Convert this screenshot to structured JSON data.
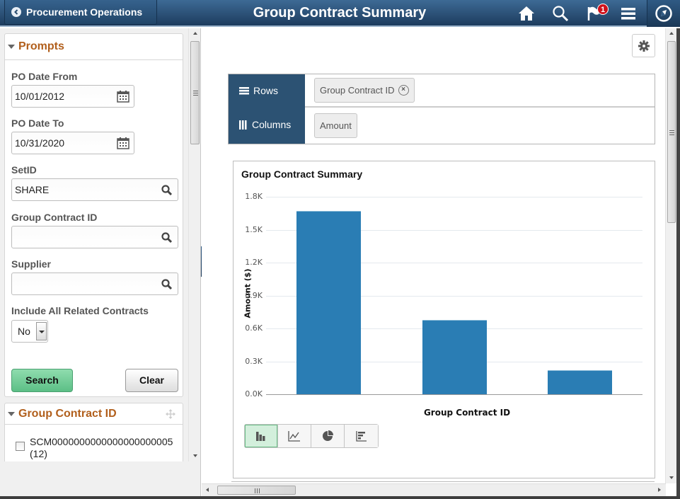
{
  "header": {
    "back_label": "Procurement Operations",
    "title": "Group Contract Summary",
    "notification_count": "1",
    "icons": [
      "home-icon",
      "search-icon",
      "notification-flag-icon",
      "menu-icon",
      "navbar-compass-icon"
    ]
  },
  "prompts": {
    "title": "Prompts",
    "po_date_from": {
      "label": "PO Date From",
      "value": "10/01/2012"
    },
    "po_date_to": {
      "label": "PO Date To",
      "value": "10/31/2020"
    },
    "setid": {
      "label": "SetID",
      "value": "SHARE"
    },
    "group_contract_id": {
      "label": "Group Contract ID",
      "value": ""
    },
    "supplier": {
      "label": "Supplier",
      "value": ""
    },
    "include_related": {
      "label": "Include All Related Contracts",
      "value": "No"
    },
    "search_label": "Search",
    "clear_label": "Clear"
  },
  "facet": {
    "title": "Group Contract ID",
    "items": [
      {
        "label": "SCM0000000000000000000005",
        "count": "(12)",
        "checked": false
      }
    ]
  },
  "pivot": {
    "rows_label": "Rows",
    "columns_label": "Columns",
    "row_chip": "Group Contract ID",
    "column_chip": "Amount"
  },
  "chart_types": [
    "bar-chart-icon",
    "line-chart-icon",
    "pie-chart-icon",
    "horizontal-bar-chart-icon"
  ],
  "chart_data": {
    "type": "bar",
    "title": "Group Contract Summary",
    "xlabel": "Group Contract ID",
    "ylabel": "Amount ($)",
    "categories": [
      "",
      "",
      ""
    ],
    "values": [
      1671,
      677,
      219
    ],
    "yticks": [
      "0.0K",
      "0.3K",
      "0.6K",
      "0.9K",
      "1.2K",
      "1.5K",
      "1.8K"
    ],
    "ylim": [
      0,
      1800
    ],
    "grid": true,
    "legend": "none",
    "bar_color": "#2a7db4"
  }
}
